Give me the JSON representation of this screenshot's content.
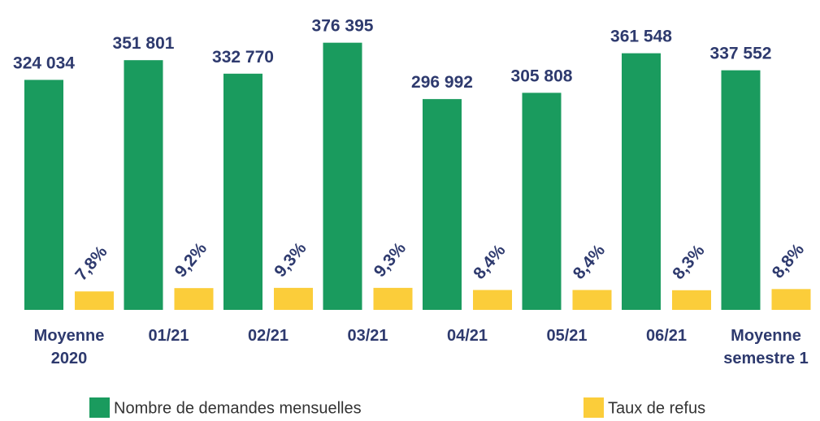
{
  "chart_data": {
    "type": "bar",
    "categories": [
      "Moyenne 2020",
      "01/21",
      "02/21",
      "03/21",
      "04/21",
      "05/21",
      "06/21",
      "Moyenne semestre 1"
    ],
    "series": [
      {
        "name": "Nombre de demandes mensuelles",
        "color": "#1a9b5e",
        "axis": "y",
        "values": [
          324034,
          351801,
          332770,
          376395,
          296992,
          305808,
          361548,
          337552
        ],
        "value_labels": [
          "324 034",
          "351 801",
          "332 770",
          "376 395",
          "296 992",
          "305 808",
          "361 548",
          "337 552"
        ]
      },
      {
        "name": "Taux de refus",
        "color": "#fbcd3a",
        "axis": "y2",
        "values": [
          7.8,
          9.2,
          9.3,
          9.3,
          8.4,
          8.4,
          8.3,
          8.8
        ],
        "value_labels": [
          "7,8%",
          "9,2%",
          "9,3%",
          "9,3%",
          "8,4%",
          "8,4%",
          "8,3%",
          "8,8%"
        ]
      }
    ],
    "ylim": [
      0,
      400000
    ],
    "y2lim": [
      0,
      120
    ],
    "legend": "bottom"
  }
}
